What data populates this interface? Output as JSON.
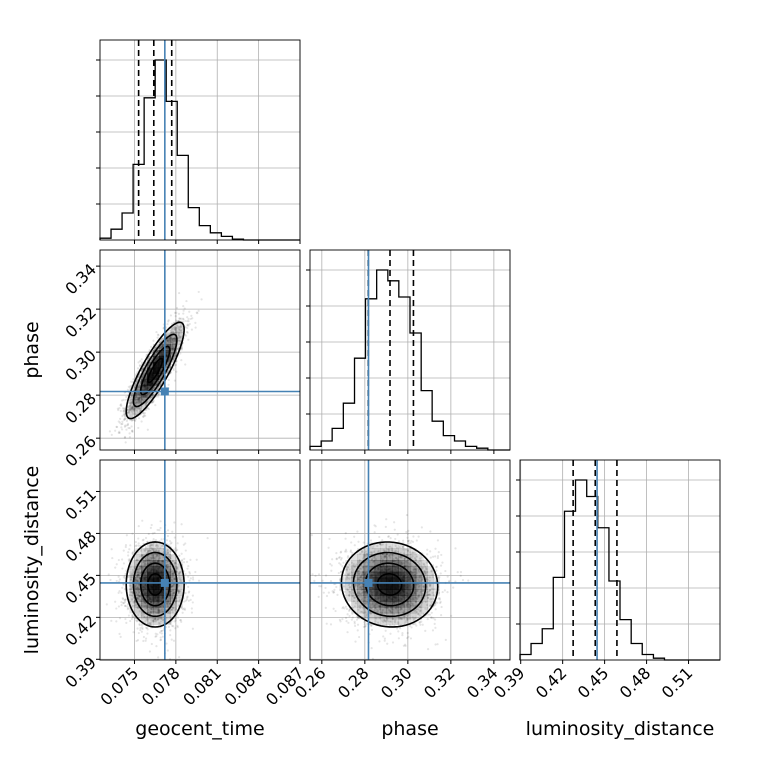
{
  "chart_data": {
    "type": "corner",
    "parameters": [
      "geocent_time",
      "phase",
      "luminosity_distance"
    ],
    "grid": true,
    "colors": {
      "truth": "#4682b4",
      "histogram": "#000000",
      "quantile": "#000000",
      "grid": "#b0b0b0",
      "contour": "#000000",
      "density": "#000000"
    },
    "truths": {
      "geocent_time": 0.0772,
      "phase": 0.2817,
      "luminosity_distance": 0.4446
    },
    "axes": {
      "geocent_time": {
        "range": [
          0.0725,
          0.087
        ],
        "ticks": [
          0.075,
          0.078,
          0.081,
          0.084,
          0.087
        ],
        "tick_labels": [
          "0.075",
          "0.078",
          "0.081",
          "0.084",
          "0.087"
        ]
      },
      "phase": {
        "range": [
          0.2545,
          0.3475
        ],
        "ticks": [
          0.26,
          0.28,
          0.3,
          0.32,
          0.34
        ],
        "tick_labels": [
          "0.26",
          "0.28",
          "0.30",
          "0.32",
          "0.34"
        ]
      },
      "luminosity_distance": {
        "range": [
          0.3895,
          0.5325
        ],
        "ticks": [
          0.39,
          0.42,
          0.45,
          0.48,
          0.51
        ],
        "tick_labels": [
          "0.39",
          "0.42",
          "0.45",
          "0.48",
          "0.51"
        ]
      }
    },
    "marginals": {
      "geocent_time": {
        "bins": [
          0.0725,
          0.0733,
          0.0741,
          0.0749,
          0.0757,
          0.0765,
          0.0773,
          0.0781,
          0.0789,
          0.0797,
          0.0805,
          0.0813,
          0.0821,
          0.0829,
          0.0837,
          0.0845,
          0.0853,
          0.0861,
          0.087
        ],
        "counts": [
          0.01,
          0.06,
          0.15,
          0.42,
          0.79,
          1.0,
          0.77,
          0.47,
          0.18,
          0.08,
          0.04,
          0.02,
          0.005,
          0,
          0,
          0,
          0,
          0
        ],
        "quantiles": [
          0.0753,
          0.0764,
          0.0777
        ]
      },
      "phase": {
        "bins": [
          0.2545,
          0.2597,
          0.2648,
          0.27,
          0.2752,
          0.2803,
          0.2855,
          0.2907,
          0.2958,
          0.301,
          0.3062,
          0.3113,
          0.3165,
          0.3217,
          0.3268,
          0.332,
          0.3372,
          0.3423,
          0.3475
        ],
        "counts": [
          0.02,
          0.05,
          0.12,
          0.26,
          0.51,
          0.84,
          1.0,
          0.94,
          0.85,
          0.65,
          0.33,
          0.16,
          0.08,
          0.05,
          0.02,
          0.01,
          0,
          0
        ],
        "quantiles": [
          0.2816,
          0.2917,
          0.3026
        ]
      },
      "luminosity_distance": {
        "bins": [
          0.3895,
          0.3974,
          0.4054,
          0.4133,
          0.4213,
          0.4292,
          0.4372,
          0.4451,
          0.4531,
          0.461,
          0.469,
          0.4769,
          0.4849,
          0.4928,
          0.5008,
          0.5087,
          0.5167,
          0.5246,
          0.5325
        ],
        "counts": [
          0.03,
          0.09,
          0.17,
          0.45,
          0.81,
          0.98,
          0.89,
          0.72,
          0.43,
          0.22,
          0.09,
          0.03,
          0.01,
          0,
          0,
          0,
          0,
          0
        ],
        "quantiles": [
          0.4275,
          0.4433,
          0.4588
        ]
      }
    },
    "joint": [
      {
        "x": "geocent_time",
        "y": "phase",
        "mean": [
          0.0765,
          0.2915
        ],
        "sd": [
          0.00105,
          0.0112
        ],
        "rho": 0.85,
        "levels": [
          0.5,
          1.0,
          1.5,
          2.0
        ],
        "samples": 1800
      },
      {
        "x": "geocent_time",
        "y": "luminosity_distance",
        "mean": [
          0.0765,
          0.4435
        ],
        "sd": [
          0.00105,
          0.0152
        ],
        "rho": 0.0,
        "levels": [
          0.5,
          1.0,
          1.5,
          2.0
        ],
        "samples": 1800
      },
      {
        "x": "phase",
        "y": "luminosity_distance",
        "mean": [
          0.2915,
          0.4435
        ],
        "sd": [
          0.0112,
          0.0152
        ],
        "rho": -0.05,
        "levels": [
          0.5,
          1.0,
          1.5,
          2.0
        ],
        "samples": 1800
      }
    ]
  }
}
